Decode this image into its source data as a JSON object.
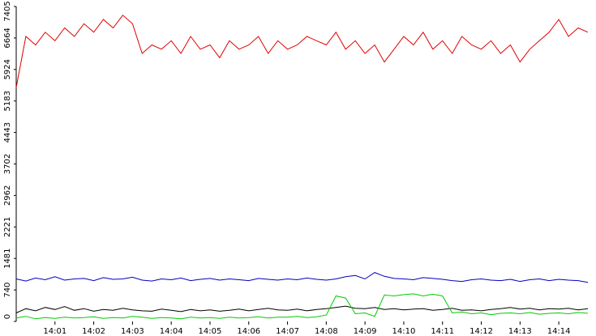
{
  "chart_data": {
    "type": "line",
    "x": [
      0,
      0.25,
      0.5,
      0.75,
      1,
      1.25,
      1.5,
      1.75,
      2,
      2.25,
      2.5,
      2.75,
      3,
      3.25,
      3.5,
      3.75,
      4,
      4.25,
      4.5,
      4.75,
      5,
      5.25,
      5.5,
      5.75,
      6,
      6.25,
      6.5,
      6.75,
      7,
      7.25,
      7.5,
      7.75,
      8,
      8.25,
      8.5,
      8.75,
      9,
      9.25,
      9.5,
      9.75,
      10,
      10.25,
      10.5,
      10.75,
      11,
      11.25,
      11.5,
      11.75,
      12,
      12.25,
      12.5,
      12.75,
      13,
      13.25,
      13.5,
      13.75,
      14,
      14.25,
      14.5,
      14.75
    ],
    "xlim": [
      0,
      14.96
    ],
    "xticks": [
      {
        "value": 1,
        "label": "14:01"
      },
      {
        "value": 2,
        "label": "14:02"
      },
      {
        "value": 3,
        "label": "14:03"
      },
      {
        "value": 4,
        "label": "14:04"
      },
      {
        "value": 5,
        "label": "14:05"
      },
      {
        "value": 6,
        "label": "14:06"
      },
      {
        "value": 7,
        "label": "14:07"
      },
      {
        "value": 8,
        "label": "14:08"
      },
      {
        "value": 9,
        "label": "14:09"
      },
      {
        "value": 10,
        "label": "14:10"
      },
      {
        "value": 11,
        "label": "14:11"
      },
      {
        "value": 12,
        "label": "14:12"
      },
      {
        "value": 13,
        "label": "14:13"
      },
      {
        "value": 14,
        "label": "14:14"
      }
    ],
    "ylim": [
      0,
      7405
    ],
    "yticks": [
      0,
      740,
      1481,
      2221,
      2962,
      3702,
      4443,
      5183,
      5924,
      6664,
      7405
    ],
    "series": [
      {
        "color": "#e00000",
        "values": [
          5500,
          6700,
          6500,
          6800,
          6600,
          6900,
          6700,
          7000,
          6800,
          7100,
          6900,
          7200,
          7000,
          6300,
          6500,
          6400,
          6600,
          6300,
          6700,
          6400,
          6500,
          6200,
          6600,
          6400,
          6500,
          6700,
          6300,
          6600,
          6400,
          6500,
          6700,
          6600,
          6500,
          6800,
          6400,
          6600,
          6300,
          6500,
          6100,
          6400,
          6700,
          6500,
          6800,
          6400,
          6600,
          6300,
          6700,
          6500,
          6400,
          6600,
          6300,
          6500,
          6100,
          6400,
          6600,
          6800,
          7100,
          6700,
          6900,
          6800
        ]
      },
      {
        "color": "#0000c0",
        "values": [
          1000,
          950,
          1020,
          980,
          1050,
          970,
          1000,
          1010,
          960,
          1030,
          990,
          1000,
          1040,
          970,
          950,
          1000,
          980,
          1020,
          960,
          990,
          1010,
          970,
          1000,
          980,
          960,
          1010,
          990,
          970,
          1000,
          980,
          1020,
          990,
          970,
          1000,
          1050,
          1080,
          1000,
          1150,
          1060,
          1010,
          1000,
          980,
          1030,
          1010,
          990,
          960,
          940,
          980,
          1000,
          970,
          960,
          990,
          940,
          980,
          1000,
          960,
          990,
          970,
          960,
          920
        ]
      },
      {
        "color": "#000000",
        "values": [
          200,
          300,
          250,
          330,
          280,
          350,
          260,
          300,
          240,
          280,
          260,
          310,
          270,
          250,
          240,
          290,
          260,
          230,
          280,
          250,
          270,
          240,
          260,
          290,
          250,
          280,
          310,
          270,
          260,
          290,
          250,
          280,
          300,
          330,
          360,
          310,
          300,
          330,
          280,
          300,
          270,
          290,
          300,
          260,
          280,
          310,
          260,
          270,
          250,
          280,
          300,
          330,
          290,
          310,
          270,
          300,
          290,
          310,
          270,
          300
        ]
      },
      {
        "color": "#00cc00",
        "values": [
          80,
          120,
          60,
          90,
          70,
          100,
          80,
          90,
          110,
          70,
          90,
          80,
          120,
          100,
          70,
          90,
          80,
          60,
          100,
          80,
          90,
          70,
          100,
          80,
          90,
          110,
          80,
          100,
          100,
          120,
          90,
          110,
          150,
          600,
          550,
          180,
          200,
          120,
          620,
          600,
          630,
          650,
          600,
          640,
          600,
          200,
          220,
          180,
          200,
          160,
          190,
          200,
          180,
          210,
          170,
          190,
          200,
          180,
          210,
          190
        ]
      }
    ]
  }
}
